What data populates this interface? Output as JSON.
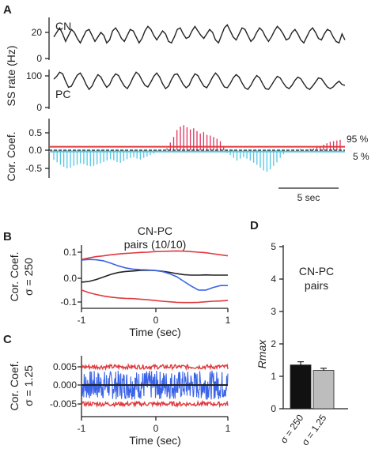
{
  "colors": {
    "black": "#222222",
    "red": "#e0393e",
    "pink": "#e0335e",
    "cyan": "#54c6e4",
    "blue": "#3a63e8",
    "bar_black": "#111111",
    "bar_gray": "#bdbdbd"
  },
  "panel_labels": {
    "a": "A",
    "b": "B",
    "c": "C",
    "d": "D"
  },
  "panel_a": {
    "ylabel_rate": "SS rate (Hz)",
    "ylabel_corr": "Cor. Coef.",
    "cn_label": "CN",
    "pc_label": "PC",
    "cn_ticks": [
      "20",
      "0"
    ],
    "pc_ticks": [
      "100",
      "0"
    ],
    "corr_ticks": [
      "0.5",
      "0.0",
      "-0.5"
    ],
    "threshold_hi_label": "95 %",
    "threshold_lo_label": "5 %",
    "scalebar_label": "5 sec"
  },
  "panel_b": {
    "title_line1": "CN-PC",
    "title_line2": "pairs (10/10)",
    "ylabel_line1": "Cor. Coef.",
    "ylabel_line2": "σ = 250",
    "xlabel": "Time (sec)",
    "yticks": [
      "0.1",
      "0.0",
      "-0.1"
    ],
    "xticks": [
      "-1",
      "0",
      "1"
    ]
  },
  "panel_c": {
    "ylabel_line1": "Cor. Coef.",
    "ylabel_line2": "σ = 1.25",
    "xlabel": "Time (sec)",
    "yticks": [
      "0.005",
      "0.000",
      "-0.005"
    ],
    "xticks": [
      "-1",
      "0",
      "1"
    ]
  },
  "panel_d": {
    "title_line1": "CN-PC",
    "title_line2": "pairs",
    "ylabel": "Rmax"
  },
  "chart_data": [
    {
      "type": "line",
      "panel": "A-CN",
      "ylabel": "SS rate (Hz)",
      "ylim": [
        0,
        30
      ],
      "series": [
        {
          "name": "CN",
          "values": [
            17,
            20,
            23,
            19,
            14,
            18,
            22,
            20,
            16,
            13,
            17,
            21,
            22,
            18,
            14,
            17,
            20,
            18,
            13,
            15,
            21,
            23,
            20,
            16,
            14,
            18,
            22,
            21,
            17,
            13,
            16,
            21,
            24,
            22,
            18,
            15,
            18,
            21,
            19,
            14,
            13,
            17,
            22,
            23,
            19,
            16,
            17,
            21,
            24,
            21,
            18,
            16,
            19,
            22,
            20,
            15,
            13,
            18,
            23,
            25,
            21,
            17,
            15,
            19,
            23,
            22,
            18,
            14,
            16,
            20,
            23,
            21,
            17,
            14,
            17,
            21,
            24,
            22,
            19,
            15,
            16,
            20,
            22,
            19,
            15,
            13,
            17,
            21,
            23,
            20,
            16,
            15,
            19,
            22,
            21,
            17,
            14,
            13,
            19,
            15
          ]
        }
      ]
    },
    {
      "type": "line",
      "panel": "A-PC",
      "ylabel": "SS rate (Hz)",
      "ylim": [
        0,
        110
      ],
      "series": [
        {
          "name": "PC",
          "values": [
            75,
            82,
            92,
            88,
            70,
            55,
            58,
            72,
            85,
            90,
            78,
            62,
            50,
            58,
            74,
            86,
            80,
            66,
            55,
            62,
            78,
            88,
            84,
            70,
            58,
            52,
            64,
            80,
            92,
            86,
            72,
            60,
            56,
            68,
            82,
            90,
            80,
            64,
            52,
            58,
            74,
            86,
            88,
            76,
            62,
            54,
            60,
            76,
            88,
            84,
            70,
            58,
            54,
            66,
            80,
            90,
            82,
            68,
            56,
            54,
            64,
            78,
            86,
            80,
            66,
            54,
            50,
            60,
            74,
            84,
            78,
            64,
            52,
            50,
            60,
            72,
            82,
            78,
            66,
            56,
            52,
            60,
            72,
            80,
            76,
            64,
            54,
            50,
            58,
            68,
            78,
            76,
            66,
            56,
            52,
            56,
            64,
            70,
            62,
            60
          ]
        }
      ]
    },
    {
      "type": "bar",
      "panel": "A-Cor",
      "ylabel": "Cor. Coef.",
      "ylim": [
        -0.7,
        0.8
      ],
      "thresholds": {
        "95 %": 0.1,
        "5 %": -0.04
      },
      "values": [
        -0.28,
        -0.35,
        -0.42,
        -0.48,
        -0.52,
        -0.5,
        -0.45,
        -0.42,
        -0.38,
        -0.4,
        -0.44,
        -0.46,
        -0.45,
        -0.41,
        -0.38,
        -0.34,
        -0.3,
        -0.26,
        -0.29,
        -0.34,
        -0.36,
        -0.31,
        -0.26,
        -0.22,
        -0.2,
        -0.24,
        -0.27,
        -0.22,
        -0.18,
        -0.14,
        -0.1,
        -0.06,
        -0.03,
        0.0,
        0.06,
        0.22,
        0.38,
        0.58,
        0.68,
        0.72,
        0.66,
        0.6,
        0.63,
        0.55,
        0.48,
        0.52,
        0.44,
        0.42,
        0.38,
        0.33,
        0.26,
        0.12,
        -0.08,
        -0.14,
        -0.22,
        -0.3,
        -0.24,
        -0.2,
        -0.24,
        -0.3,
        -0.36,
        -0.42,
        -0.5,
        -0.58,
        -0.62,
        -0.55,
        -0.45,
        -0.35,
        -0.22,
        -0.12,
        -0.05,
        0.0,
        0.02,
        0.01,
        0.03,
        0.0,
        0.02,
        0.04,
        0.05,
        0.08,
        0.12,
        0.16,
        0.2,
        0.24,
        0.26,
        0.28,
        0.3
      ]
    },
    {
      "type": "line",
      "panel": "B",
      "xlabel": "Time (sec)",
      "ylabel": "Cor. Coef. σ = 250",
      "xlim": [
        -1,
        1
      ],
      "ylim": [
        -0.11,
        0.12
      ],
      "x": [
        -1,
        -0.9,
        -0.8,
        -0.7,
        -0.6,
        -0.5,
        -0.4,
        -0.3,
        -0.2,
        -0.1,
        0,
        0.1,
        0.2,
        0.3,
        0.4,
        0.5,
        0.6,
        0.7,
        0.8,
        0.9,
        1
      ],
      "series": [
        {
          "name": "",
          "color": "#e0393e",
          "values": [
            0.072,
            0.078,
            0.083,
            0.086,
            0.09,
            0.093,
            0.095,
            0.097,
            0.099,
            0.1,
            0.102,
            0.103,
            0.104,
            0.105,
            0.104,
            0.102,
            0.1,
            0.098,
            0.094,
            0.09,
            0.086
          ]
        },
        {
          "name": "",
          "color": "#222222",
          "values": [
            -0.015,
            -0.012,
            -0.005,
            0.005,
            0.015,
            0.022,
            0.026,
            0.028,
            0.03,
            0.031,
            0.03,
            0.027,
            0.023,
            0.018,
            0.014,
            0.012,
            0.012,
            0.013,
            0.012,
            0.012,
            0.012
          ]
        },
        {
          "name": "",
          "color": "#3a63e8",
          "values": [
            0.07,
            0.072,
            0.071,
            0.067,
            0.058,
            0.048,
            0.04,
            0.035,
            0.033,
            0.032,
            0.03,
            0.026,
            0.018,
            0.006,
            -0.012,
            -0.03,
            -0.045,
            -0.045,
            -0.035,
            -0.028,
            -0.028
          ]
        },
        {
          "name": "",
          "color": "#e0393e",
          "values": [
            -0.045,
            -0.055,
            -0.062,
            -0.068,
            -0.072,
            -0.075,
            -0.077,
            -0.078,
            -0.08,
            -0.082,
            -0.085,
            -0.088,
            -0.09,
            -0.092,
            -0.093,
            -0.093,
            -0.092,
            -0.09,
            -0.088,
            -0.087,
            -0.085
          ]
        }
      ]
    },
    {
      "type": "line",
      "panel": "C",
      "xlabel": "Time (sec)",
      "ylabel": "Cor. Coef. σ = 1.25",
      "xlim": [
        -1,
        1
      ],
      "ylim": [
        -0.0068,
        0.0068
      ],
      "series": [
        {
          "name": "",
          "color": "#e0393e",
          "description_level": 0.005
        },
        {
          "name": "",
          "color": "#3a63e8",
          "range": [
            -0.004,
            0.004
          ]
        },
        {
          "name": "",
          "color": "#222222",
          "level": 0.0
        },
        {
          "name": "",
          "color": "#e0393e",
          "description_level": -0.0052
        }
      ]
    },
    {
      "type": "bar",
      "panel": "D",
      "ylabel": "Rmax",
      "ylim": [
        0,
        5
      ],
      "yticks": [
        0,
        1,
        2,
        3,
        4,
        5
      ],
      "categories": [
        "σ = 250",
        "σ = 1.25"
      ],
      "values": [
        1.35,
        1.18
      ],
      "errors": [
        0.1,
        0.07
      ],
      "colors": [
        "#111111",
        "#bdbdbd"
      ]
    }
  ]
}
